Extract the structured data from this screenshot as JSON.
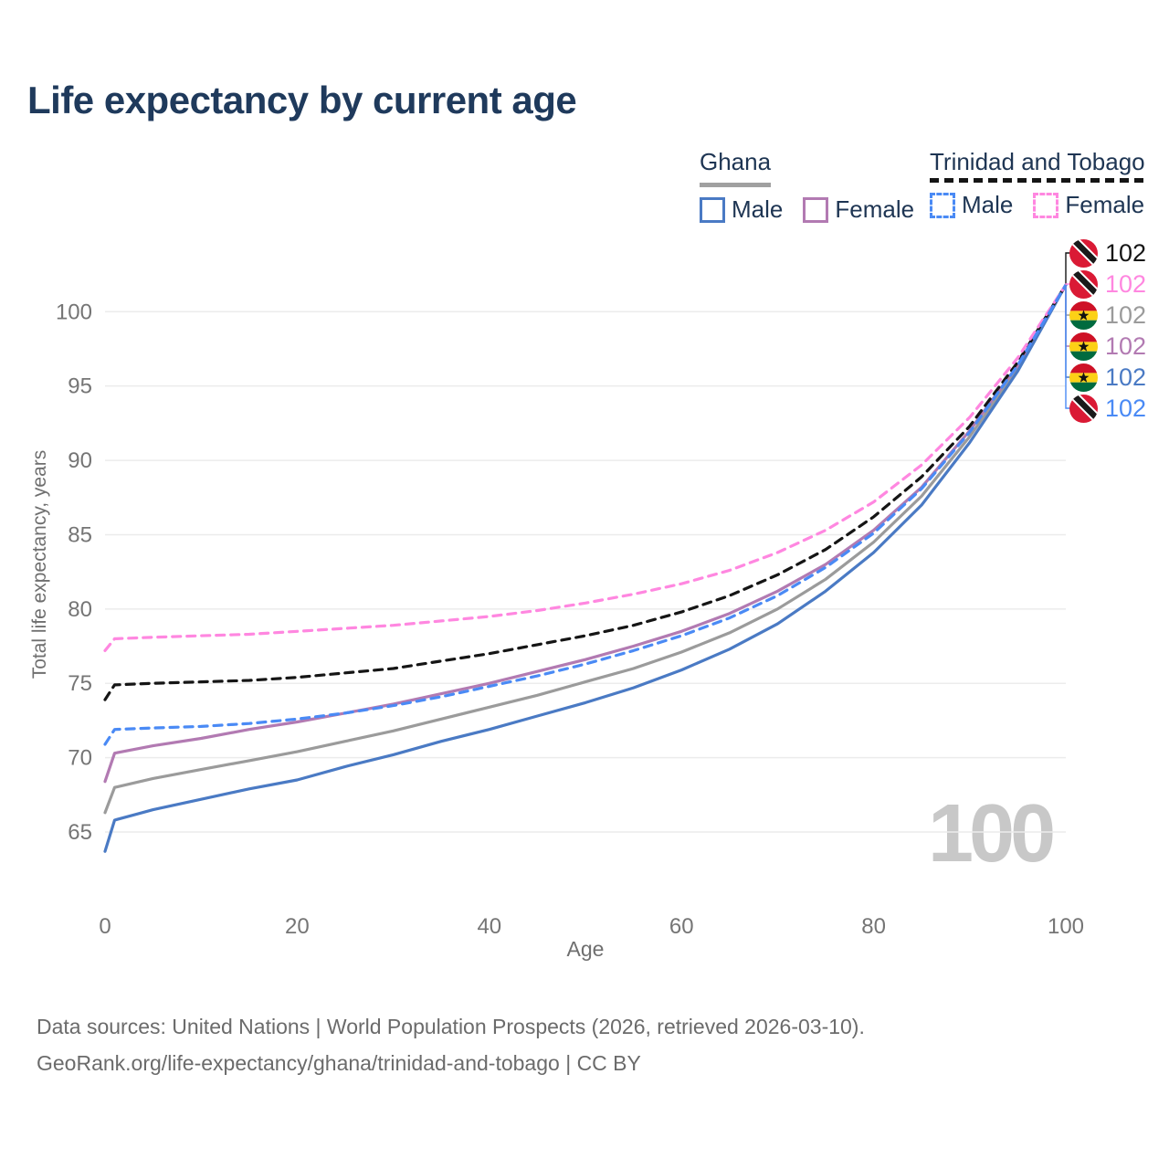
{
  "header": {
    "title": "Life expectancy by current age"
  },
  "legend": {
    "ghana": {
      "label": "Ghana",
      "male": "Male",
      "female": "Female"
    },
    "tt": {
      "label": "Trinidad and Tobago",
      "male": "Male",
      "female": "Female"
    }
  },
  "watermark": "100",
  "footer": {
    "line1": "Data sources: United Nations | World Population Prospects (2026, retrieved 2026-03-10).",
    "line2": "GeoRank.org/life-expectancy/ghana/trinidad-and-tobago | CC BY"
  },
  "colors": {
    "ghana_male": "#4a7ac4",
    "ghana_female": "#b27ab2",
    "ghana_all": "#9b9b9b",
    "tt_male": "#4a8af5",
    "tt_female": "#ff87e0",
    "tt_all": "#151515",
    "grid": "#ececec",
    "tick_text": "#757575"
  },
  "chart_data": {
    "type": "line",
    "title": "Life expectancy by current age",
    "xlabel": "Age",
    "ylabel": "Total life expectancy, years",
    "x_ticks": [
      0,
      20,
      40,
      60,
      80,
      100
    ],
    "y_ticks": [
      65,
      70,
      75,
      80,
      85,
      90,
      95,
      100
    ],
    "xlim": [
      0,
      100
    ],
    "ylim": [
      63,
      103
    ],
    "grid": "horizontal",
    "legend_position": "top-right",
    "series": [
      {
        "name": "Ghana — all",
        "color": "#9b9b9b",
        "dash": false,
        "points": [
          [
            0,
            66.3
          ],
          [
            1,
            68.0
          ],
          [
            5,
            68.6
          ],
          [
            10,
            69.2
          ],
          [
            15,
            69.8
          ],
          [
            20,
            70.4
          ],
          [
            25,
            71.1
          ],
          [
            30,
            71.8
          ],
          [
            35,
            72.6
          ],
          [
            40,
            73.4
          ],
          [
            45,
            74.2
          ],
          [
            50,
            75.1
          ],
          [
            55,
            76.0
          ],
          [
            60,
            77.1
          ],
          [
            65,
            78.4
          ],
          [
            70,
            80.0
          ],
          [
            75,
            82.0
          ],
          [
            80,
            84.5
          ],
          [
            85,
            87.6
          ],
          [
            90,
            91.6
          ],
          [
            95,
            96.2
          ],
          [
            100,
            101.8
          ]
        ]
      },
      {
        "name": "Ghana — female",
        "color": "#b27ab2",
        "dash": false,
        "points": [
          [
            0,
            68.4
          ],
          [
            1,
            70.3
          ],
          [
            5,
            70.8
          ],
          [
            10,
            71.3
          ],
          [
            15,
            71.9
          ],
          [
            20,
            72.4
          ],
          [
            25,
            73.0
          ],
          [
            30,
            73.6
          ],
          [
            35,
            74.3
          ],
          [
            40,
            75.0
          ],
          [
            45,
            75.8
          ],
          [
            50,
            76.6
          ],
          [
            55,
            77.5
          ],
          [
            60,
            78.5
          ],
          [
            65,
            79.7
          ],
          [
            70,
            81.2
          ],
          [
            75,
            83.0
          ],
          [
            80,
            85.3
          ],
          [
            85,
            88.2
          ],
          [
            90,
            92.0
          ],
          [
            95,
            96.4
          ],
          [
            100,
            101.8
          ]
        ]
      },
      {
        "name": "Ghana — male",
        "color": "#4a7ac4",
        "dash": false,
        "points": [
          [
            0,
            63.7
          ],
          [
            1,
            65.8
          ],
          [
            5,
            66.5
          ],
          [
            10,
            67.2
          ],
          [
            15,
            67.9
          ],
          [
            20,
            68.5
          ],
          [
            25,
            69.4
          ],
          [
            30,
            70.2
          ],
          [
            35,
            71.1
          ],
          [
            40,
            71.9
          ],
          [
            45,
            72.8
          ],
          [
            50,
            73.7
          ],
          [
            55,
            74.7
          ],
          [
            60,
            75.9
          ],
          [
            65,
            77.3
          ],
          [
            70,
            79.0
          ],
          [
            75,
            81.2
          ],
          [
            80,
            83.8
          ],
          [
            85,
            87.0
          ],
          [
            90,
            91.2
          ],
          [
            95,
            96.0
          ],
          [
            100,
            101.8
          ]
        ]
      },
      {
        "name": "Trinidad and Tobago — all",
        "color": "#151515",
        "dash": true,
        "points": [
          [
            0,
            73.9
          ],
          [
            1,
            74.9
          ],
          [
            5,
            75.0
          ],
          [
            10,
            75.1
          ],
          [
            15,
            75.2
          ],
          [
            20,
            75.4
          ],
          [
            25,
            75.7
          ],
          [
            30,
            76.0
          ],
          [
            35,
            76.5
          ],
          [
            40,
            77.0
          ],
          [
            45,
            77.6
          ],
          [
            50,
            78.2
          ],
          [
            55,
            78.9
          ],
          [
            60,
            79.8
          ],
          [
            65,
            80.9
          ],
          [
            70,
            82.3
          ],
          [
            75,
            84.0
          ],
          [
            80,
            86.2
          ],
          [
            85,
            88.9
          ],
          [
            90,
            92.3
          ],
          [
            95,
            96.6
          ],
          [
            100,
            101.8
          ]
        ]
      },
      {
        "name": "Trinidad and Tobago — female",
        "color": "#ff87e0",
        "dash": true,
        "points": [
          [
            0,
            77.2
          ],
          [
            1,
            78.0
          ],
          [
            5,
            78.1
          ],
          [
            10,
            78.2
          ],
          [
            15,
            78.3
          ],
          [
            20,
            78.5
          ],
          [
            25,
            78.7
          ],
          [
            30,
            78.9
          ],
          [
            35,
            79.2
          ],
          [
            40,
            79.5
          ],
          [
            45,
            79.9
          ],
          [
            50,
            80.4
          ],
          [
            55,
            81.0
          ],
          [
            60,
            81.7
          ],
          [
            65,
            82.6
          ],
          [
            70,
            83.8
          ],
          [
            75,
            85.3
          ],
          [
            80,
            87.2
          ],
          [
            85,
            89.7
          ],
          [
            90,
            92.9
          ],
          [
            95,
            96.9
          ],
          [
            100,
            101.8
          ]
        ]
      },
      {
        "name": "Trinidad and Tobago — male",
        "color": "#4a8af5",
        "dash": true,
        "points": [
          [
            0,
            70.9
          ],
          [
            1,
            71.9
          ],
          [
            5,
            72.0
          ],
          [
            10,
            72.1
          ],
          [
            15,
            72.3
          ],
          [
            20,
            72.6
          ],
          [
            25,
            73.0
          ],
          [
            30,
            73.5
          ],
          [
            35,
            74.1
          ],
          [
            40,
            74.8
          ],
          [
            45,
            75.5
          ],
          [
            50,
            76.3
          ],
          [
            55,
            77.2
          ],
          [
            60,
            78.2
          ],
          [
            65,
            79.4
          ],
          [
            70,
            80.9
          ],
          [
            75,
            82.8
          ],
          [
            80,
            85.1
          ],
          [
            85,
            88.1
          ],
          [
            90,
            91.9
          ],
          [
            95,
            96.4
          ],
          [
            100,
            101.8
          ]
        ]
      }
    ],
    "end_value": 101.8,
    "end_labels": [
      {
        "value": "102",
        "flag": "trinidad-and-tobago",
        "color": "#151515",
        "series": "Trinidad and Tobago — all"
      },
      {
        "value": "102",
        "flag": "trinidad-and-tobago",
        "color": "#ff87e0",
        "series": "Trinidad and Tobago — female"
      },
      {
        "value": "102",
        "flag": "ghana",
        "color": "#9b9b9b",
        "series": "Ghana — all"
      },
      {
        "value": "102",
        "flag": "ghana",
        "color": "#b27ab2",
        "series": "Ghana — female"
      },
      {
        "value": "102",
        "flag": "ghana",
        "color": "#4a7ac4",
        "series": "Ghana — male"
      },
      {
        "value": "102",
        "flag": "trinidad-and-tobago",
        "color": "#4a8af5",
        "series": "Trinidad and Tobago — male"
      }
    ]
  }
}
